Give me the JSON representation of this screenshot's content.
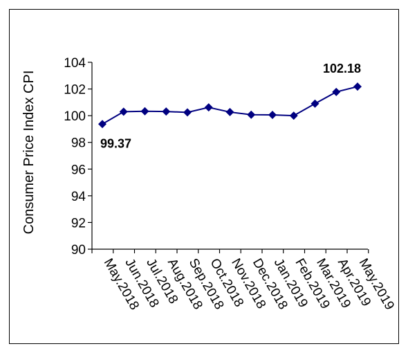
{
  "chart_data": {
    "type": "line",
    "title": "",
    "xlabel": "",
    "ylabel": "Consumer Price Index CPI",
    "ylim": [
      90,
      104
    ],
    "yticks": [
      90,
      92,
      94,
      96,
      98,
      100,
      102,
      104
    ],
    "grid": false,
    "legend": "none",
    "categories": [
      "May.2018",
      "Jun.2018",
      "Jul.2018",
      "Aug.2018",
      "Sep.2018",
      "Oct.2018",
      "Nov.2018",
      "Dec.2018",
      "Jan.2019",
      "Feb.2019",
      "Mar.2019",
      "Apr.2019",
      "May.2019"
    ],
    "series": [
      {
        "values": [
          99.37,
          100.3,
          100.33,
          100.31,
          100.25,
          100.62,
          100.27,
          100.07,
          100.06,
          100.0,
          100.9,
          101.78,
          102.18
        ],
        "color": "#000080",
        "marker": "diamond"
      }
    ],
    "annotations": [
      {
        "label": "99.37",
        "index": 0
      },
      {
        "label": "102.18",
        "index": 12
      }
    ]
  }
}
